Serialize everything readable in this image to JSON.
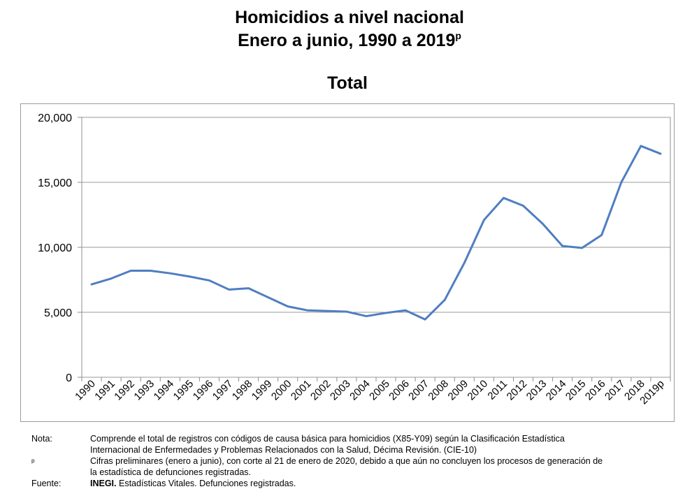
{
  "header": {
    "line1": "Homicidios a nivel nacional",
    "line2": "Enero a junio, 1990 a 2019",
    "line2_sup": "p"
  },
  "chart_data": {
    "type": "line",
    "title": "Total",
    "xlabel": "",
    "ylabel": "",
    "ylim": [
      0,
      20000
    ],
    "yticks": [
      0,
      5000,
      10000,
      15000,
      20000
    ],
    "ytick_labels": [
      "0",
      "5,000",
      "10,000",
      "15,000",
      "20,000"
    ],
    "grid": true,
    "line_color": "#4f7ec1",
    "categories": [
      "1990",
      "1991",
      "1992",
      "1993",
      "1994",
      "1995",
      "1996",
      "1997",
      "1998",
      "1999",
      "2000",
      "2001",
      "2002",
      "2003",
      "2004",
      "2005",
      "2006",
      "2007",
      "2008",
      "2009",
      "2010",
      "2011",
      "2012",
      "2013",
      "2014",
      "2015",
      "2016",
      "2017",
      "2018",
      "2019p"
    ],
    "series": [
      {
        "name": "Total",
        "values": [
          7150,
          7600,
          8200,
          8200,
          8000,
          7750,
          7450,
          6750,
          6850,
          6150,
          5450,
          5150,
          5100,
          5050,
          4700,
          4950,
          5150,
          4450,
          5950,
          8800,
          12100,
          13800,
          13200,
          11800,
          10100,
          9950,
          10950,
          15000,
          17800,
          17200
        ]
      }
    ]
  },
  "notes": {
    "nota_label": "Nota:",
    "nota_line1": "Comprende el total de registros con códigos de causa básica para homicidios (X85-Y09) según la Clasificación Estadística",
    "nota_line2": "Internacional de Enfermedades y Problemas Relacionados con la Salud, Décima Revisión. (CIE-10)",
    "p_label": "p",
    "p_line1": "Cifras preliminares (enero a junio), con corte al 21 de enero de 2020, debido a que aún no concluyen los procesos de generación de",
    "p_line2": "la estadística de defunciones registradas.",
    "fuente_label": "Fuente:",
    "fuente_bold": "INEGI.",
    "fuente_text": " Estadísticas Vitales. Defunciones registradas."
  }
}
